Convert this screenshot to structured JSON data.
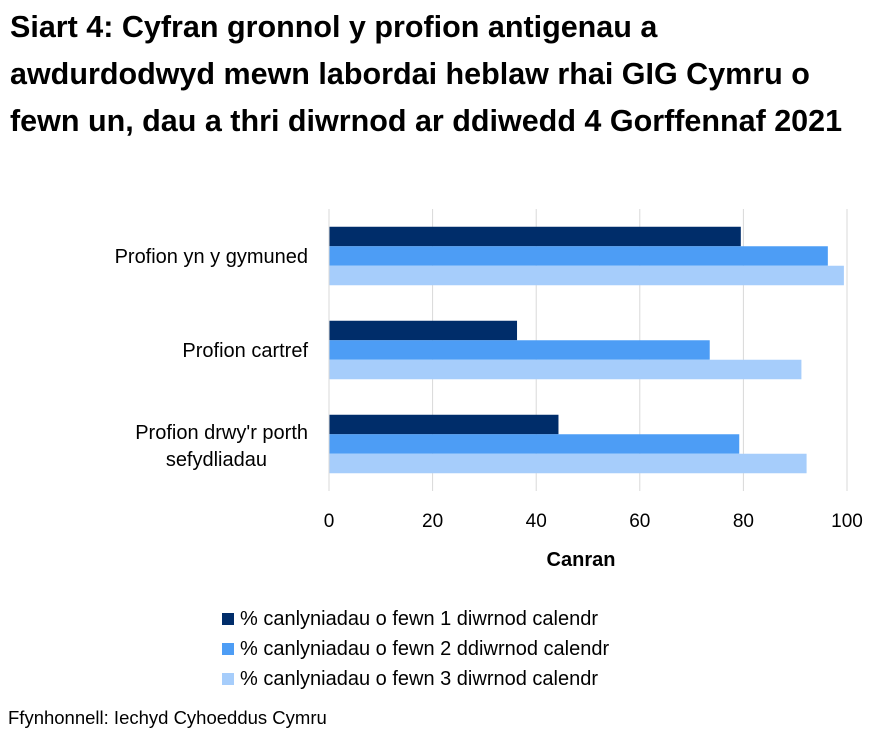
{
  "source": "Ffynhonnell: Iechyd Cyhoeddus Cymru",
  "chart_data": {
    "type": "bar",
    "orientation": "horizontal",
    "title": "Siart 4: Cyfran gronnol y profion antigenau a awdurdodwyd mewn labordai heblaw rhai GIG Cymru o fewn un, dau a thri diwrnod ar ddiwedd 4 Gorffennaf 2021",
    "categories": [
      "Profion yn y gymuned",
      "Profion cartref",
      "Profion drwy'r porth sefydliadau"
    ],
    "series": [
      {
        "name": "% canlyniadau o fewn 1 diwrnod calendr",
        "color": "#002d6a",
        "values": [
          79.5,
          36.3,
          44.3
        ]
      },
      {
        "name": "% canlyniadau o fewn 2 ddiwrnod calendr",
        "color": "#4d9df5",
        "values": [
          96.3,
          73.5,
          79.2
        ]
      },
      {
        "name": "% canlyniadau o fewn 3 diwrnod calendr",
        "color": "#a6cdfb",
        "values": [
          99.4,
          91.2,
          92.2
        ]
      }
    ],
    "xlabel": "Canran",
    "ylabel": "",
    "xlim": [
      0,
      100
    ],
    "xticks": [
      0,
      20,
      40,
      60,
      80,
      100
    ],
    "grid": true,
    "legend_position": "bottom"
  }
}
